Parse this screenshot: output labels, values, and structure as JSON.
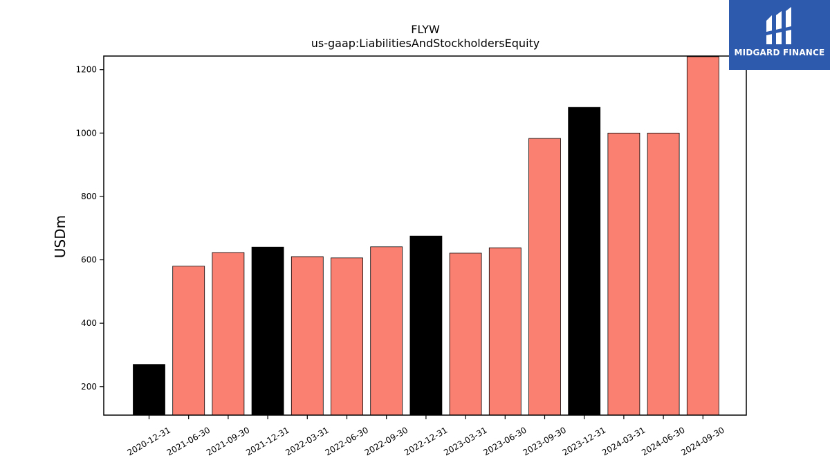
{
  "chart_data": {
    "type": "bar",
    "title": "FLYW",
    "subtitle": "us-gaap:LiabilitiesAndStockholdersEquity",
    "xlabel": "",
    "ylabel": "USDm",
    "ylim": [
      110,
      1243
    ],
    "yticks": [
      200,
      400,
      600,
      800,
      1000,
      1200
    ],
    "grid": false,
    "categories": [
      "2020-12-31",
      "2021-06-30",
      "2021-09-30",
      "2021-12-31",
      "2022-03-31",
      "2022-06-30",
      "2022-09-30",
      "2022-12-31",
      "2023-03-31",
      "2023-06-30",
      "2023-09-30",
      "2023-12-31",
      "2024-03-31",
      "2024-06-30",
      "2024-09-30"
    ],
    "values": [
      270,
      580,
      623,
      640,
      610,
      606,
      641,
      675,
      621,
      638,
      983,
      1081,
      1000,
      1000,
      1241
    ],
    "colors": [
      "#000000",
      "#fa8072",
      "#fa8072",
      "#000000",
      "#fa8072",
      "#fa8072",
      "#fa8072",
      "#000000",
      "#fa8072",
      "#fa8072",
      "#fa8072",
      "#000000",
      "#fa8072",
      "#fa8072",
      "#fa8072"
    ]
  },
  "logo": {
    "text": "MIDGARD FINANCE",
    "background": "#2d5aad"
  }
}
